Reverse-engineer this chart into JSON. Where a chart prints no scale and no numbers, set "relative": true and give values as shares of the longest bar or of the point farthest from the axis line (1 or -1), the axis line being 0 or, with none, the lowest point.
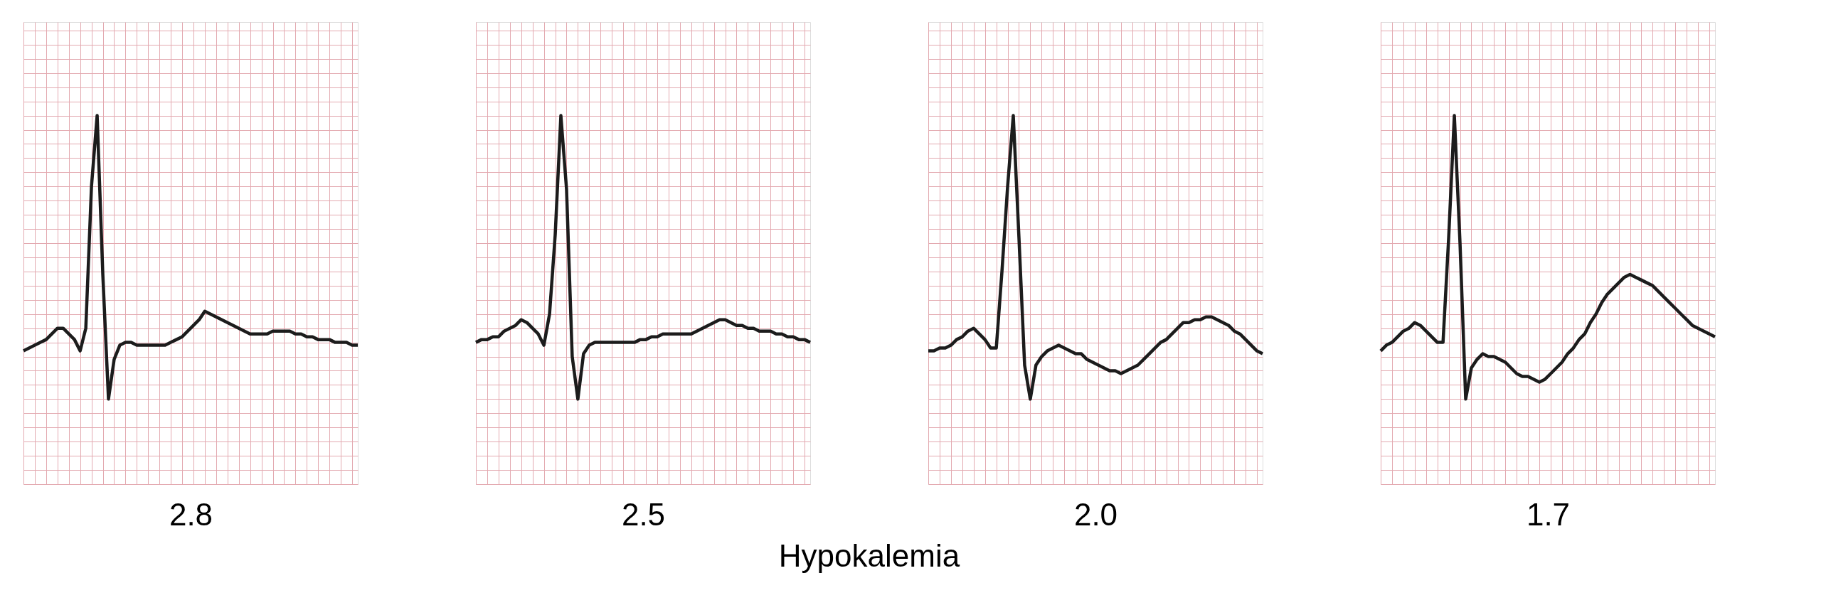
{
  "chart_data": [
    {
      "type": "line",
      "xlabel": "2.8",
      "relative": true,
      "grid": true,
      "annotations": [
        "Hypokalemia"
      ],
      "categories": [
        null,
        null,
        null,
        null,
        null,
        null,
        null,
        null,
        null,
        null,
        null,
        null,
        null,
        null,
        null,
        null,
        null,
        null,
        null,
        null,
        null,
        null,
        null,
        null,
        null,
        null,
        null,
        null,
        null,
        null,
        null,
        null,
        null,
        null,
        null,
        null,
        null,
        null,
        null,
        null,
        null,
        null,
        null,
        null,
        null,
        null,
        null,
        null,
        null,
        null,
        null,
        null,
        null,
        null,
        null,
        null,
        null,
        null,
        null,
        null
      ],
      "series": [
        {
          "color": "#1c1c1c",
          "values": [
            0.17,
            0.18,
            0.19,
            0.2,
            0.21,
            0.23,
            0.25,
            0.25,
            0.23,
            0.21,
            0.17,
            0.25,
            0.75,
            1.0,
            0.44,
            0,
            0.14,
            0.19,
            0.2,
            0.2,
            0.19,
            0.19,
            0.19,
            0.19,
            0.19,
            0.19,
            0.2,
            0.21,
            0.22,
            0.24,
            0.26,
            0.28,
            0.31,
            0.3,
            0.29,
            0.28,
            0.27,
            0.26,
            0.25,
            0.24,
            0.23,
            0.23,
            0.23,
            0.23,
            0.24,
            0.24,
            0.24,
            0.24,
            0.23,
            0.23,
            0.22,
            0.22,
            0.21,
            0.21,
            0.21,
            0.2,
            0.2,
            0.2,
            0.19,
            0.19
          ]
        }
      ]
    },
    {
      "type": "line",
      "xlabel": "2.5",
      "relative": true,
      "grid": true,
      "categories": [
        null,
        null,
        null,
        null,
        null,
        null,
        null,
        null,
        null,
        null,
        null,
        null,
        null,
        null,
        null,
        null,
        null,
        null,
        null,
        null,
        null,
        null,
        null,
        null,
        null,
        null,
        null,
        null,
        null,
        null,
        null,
        null,
        null,
        null,
        null,
        null,
        null,
        null,
        null,
        null,
        null,
        null,
        null,
        null,
        null,
        null,
        null,
        null,
        null,
        null,
        null,
        null,
        null,
        null,
        null,
        null,
        null,
        null,
        null,
        null
      ],
      "series": [
        {
          "color": "#1c1c1c",
          "values": [
            0.2,
            0.21,
            0.21,
            0.22,
            0.22,
            0.24,
            0.25,
            0.26,
            0.28,
            0.27,
            0.25,
            0.23,
            0.19,
            0.3,
            0.58,
            1.0,
            0.74,
            0.15,
            0,
            0.16,
            0.19,
            0.2,
            0.2,
            0.2,
            0.2,
            0.2,
            0.2,
            0.2,
            0.2,
            0.21,
            0.21,
            0.22,
            0.22,
            0.23,
            0.23,
            0.23,
            0.23,
            0.23,
            0.23,
            0.24,
            0.25,
            0.26,
            0.27,
            0.28,
            0.28,
            0.27,
            0.26,
            0.26,
            0.25,
            0.25,
            0.24,
            0.24,
            0.24,
            0.23,
            0.23,
            0.22,
            0.22,
            0.21,
            0.21,
            0.2
          ]
        }
      ]
    },
    {
      "type": "line",
      "xlabel": "2.0",
      "relative": true,
      "grid": true,
      "categories": [
        null,
        null,
        null,
        null,
        null,
        null,
        null,
        null,
        null,
        null,
        null,
        null,
        null,
        null,
        null,
        null,
        null,
        null,
        null,
        null,
        null,
        null,
        null,
        null,
        null,
        null,
        null,
        null,
        null,
        null,
        null,
        null,
        null,
        null,
        null,
        null,
        null,
        null,
        null,
        null,
        null,
        null,
        null,
        null,
        null,
        null,
        null,
        null,
        null,
        null,
        null,
        null,
        null,
        null,
        null,
        null,
        null,
        null,
        null,
        null
      ],
      "series": [
        {
          "color": "#1c1c1c",
          "values": [
            0.17,
            0.17,
            0.18,
            0.18,
            0.19,
            0.21,
            0.22,
            0.24,
            0.25,
            0.23,
            0.21,
            0.18,
            0.18,
            0.45,
            0.75,
            1.0,
            0.57,
            0.12,
            0,
            0.12,
            0.15,
            0.17,
            0.18,
            0.19,
            0.18,
            0.17,
            0.16,
            0.16,
            0.14,
            0.13,
            0.12,
            0.11,
            0.1,
            0.1,
            0.09,
            0.1,
            0.11,
            0.12,
            0.14,
            0.16,
            0.18,
            0.2,
            0.21,
            0.23,
            0.25,
            0.27,
            0.27,
            0.28,
            0.28,
            0.29,
            0.29,
            0.28,
            0.27,
            0.26,
            0.24,
            0.23,
            0.21,
            0.19,
            0.17,
            0.16
          ]
        }
      ]
    },
    {
      "type": "line",
      "xlabel": "1.7",
      "relative": true,
      "grid": true,
      "categories": [
        null,
        null,
        null,
        null,
        null,
        null,
        null,
        null,
        null,
        null,
        null,
        null,
        null,
        null,
        null,
        null,
        null,
        null,
        null,
        null,
        null,
        null,
        null,
        null,
        null,
        null,
        null,
        null,
        null,
        null,
        null,
        null,
        null,
        null,
        null,
        null,
        null,
        null,
        null,
        null,
        null,
        null,
        null,
        null,
        null,
        null,
        null,
        null,
        null,
        null,
        null,
        null,
        null,
        null,
        null,
        null,
        null,
        null,
        null,
        null
      ],
      "series": [
        {
          "color": "#1c1c1c",
          "values": [
            0.17,
            0.19,
            0.2,
            0.22,
            0.24,
            0.25,
            0.27,
            0.26,
            0.24,
            0.22,
            0.2,
            0.2,
            0.57,
            1.0,
            0.55,
            0,
            0.11,
            0.14,
            0.16,
            0.15,
            0.15,
            0.14,
            0.13,
            0.11,
            0.09,
            0.08,
            0.08,
            0.07,
            0.06,
            0.07,
            0.09,
            0.11,
            0.13,
            0.16,
            0.18,
            0.21,
            0.23,
            0.27,
            0.3,
            0.34,
            0.37,
            0.39,
            0.41,
            0.43,
            0.44,
            0.43,
            0.42,
            0.41,
            0.4,
            0.38,
            0.36,
            0.34,
            0.32,
            0.3,
            0.28,
            0.26,
            0.25,
            0.24,
            0.23,
            0.22
          ]
        }
      ]
    }
  ]
}
